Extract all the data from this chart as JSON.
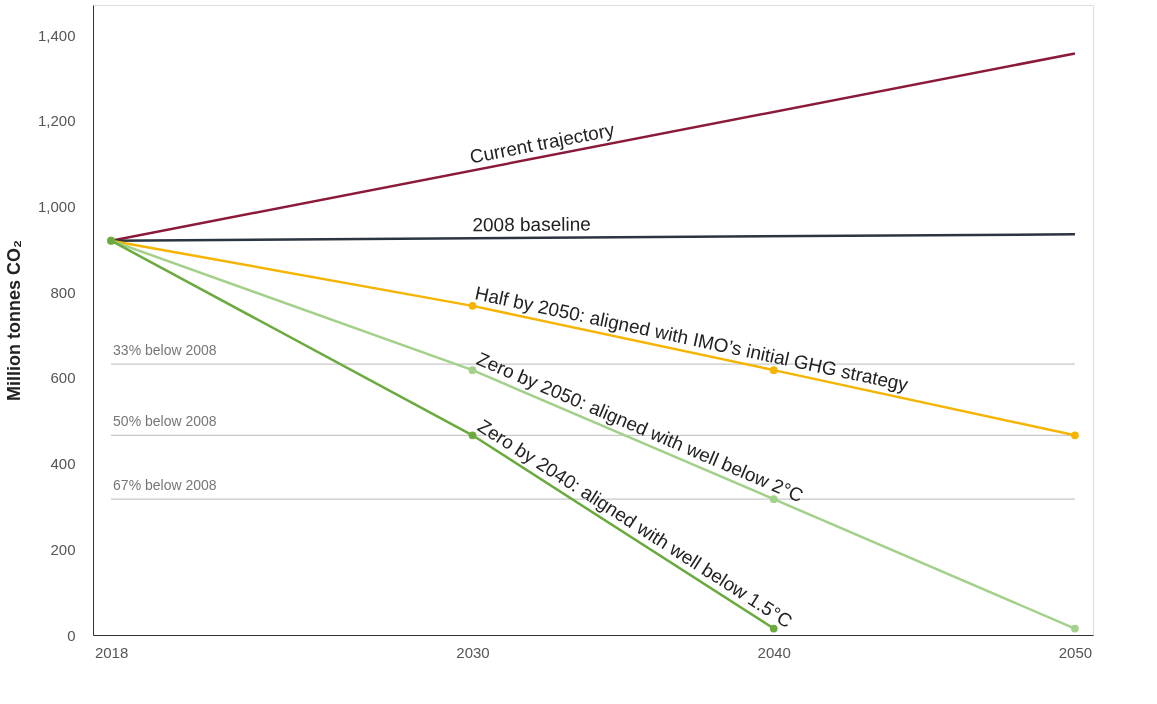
{
  "chart_data": {
    "type": "line",
    "ylabel": "Million tonnes CO₂",
    "series": [
      {
        "name": "Current trajectory",
        "color": "#8b1a3a",
        "marker": "none",
        "x": [
          2018,
          2050
        ],
        "values": [
          920,
          1357
        ]
      },
      {
        "name": "2008 baseline",
        "color": "#2b3540",
        "marker": "none",
        "x": [
          2018,
          2050
        ],
        "values": [
          920,
          935
        ]
      },
      {
        "name": "Half by 2050: aligned with IMO’s initial GHG strategy",
        "color": "#f5b400",
        "marker": "circle",
        "x": [
          2018,
          2030,
          2040,
          2050
        ],
        "values": [
          920,
          768,
          618,
          466
        ]
      },
      {
        "name": "Zero by 2050: aligned with well below 2°C",
        "color": "#a3d08a",
        "marker": "circle",
        "x": [
          2018,
          2030,
          2040,
          2050
        ],
        "values": [
          920,
          618,
          317,
          15
        ]
      },
      {
        "name": "Zero by 2040: aligned with well below 1.5°C",
        "color": "#6aaa3e",
        "marker": "circle",
        "x": [
          2018,
          2030,
          2040
        ],
        "values": [
          920,
          466,
          15
        ]
      }
    ],
    "xlim": [
      2017.4,
      2050.6
    ],
    "ylim": [
      0,
      1470
    ],
    "xticks": [
      2018,
      2030,
      2040,
      2050
    ],
    "yticks": [
      0,
      200,
      400,
      600,
      800,
      {
        "value": 1000,
        "label": "1,000"
      },
      {
        "value": 1200,
        "label": "1,200"
      },
      {
        "value": 1400,
        "label": "1,400"
      }
    ],
    "ref_lines": [
      {
        "axis": "y",
        "value": 632,
        "label": "33% below 2008",
        "color": "#c8c8c8"
      },
      {
        "axis": "y",
        "value": 466,
        "label": "50% below 2008",
        "color": "#c8c8c8"
      },
      {
        "axis": "y",
        "value": 317,
        "label": "67% below 2008",
        "color": "#c8c8c8"
      }
    ],
    "grid": false
  }
}
